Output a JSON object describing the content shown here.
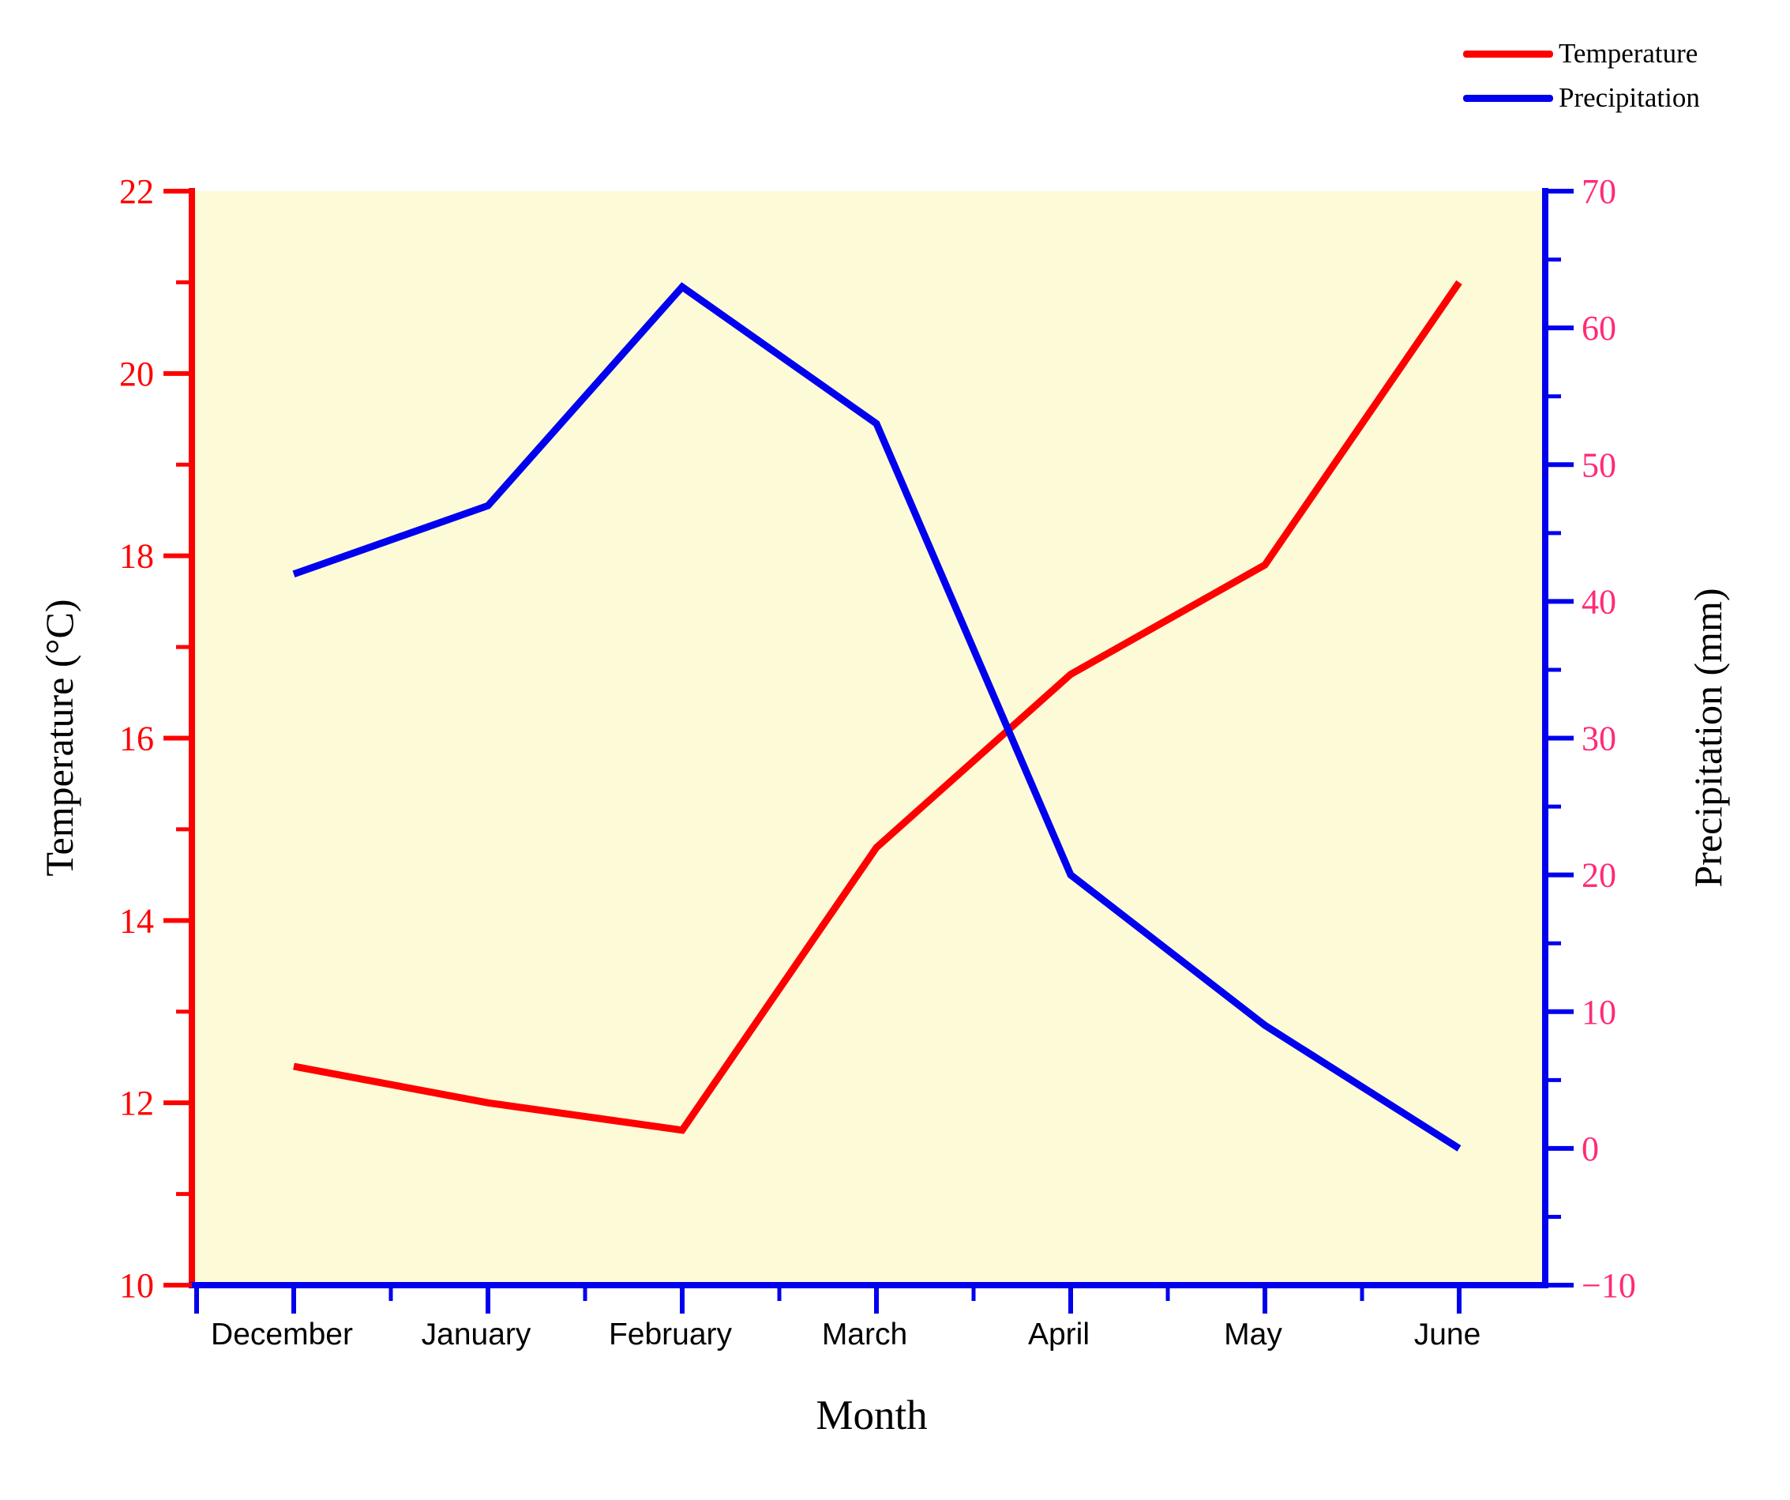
{
  "figure": {
    "background": "#ffffff",
    "plot_background": "#FDFAD8"
  },
  "colors": {
    "temperature_line": "#FF0000",
    "precipitation_line": "#0000EE",
    "left_axis": "#FF0000",
    "left_tick_labels": "#FF0000",
    "right_axis": "#0000EE",
    "right_tick_labels": "#FF2A78",
    "bottom_axis": "#0000EE",
    "month_labels": "#000000"
  },
  "legend": {
    "position": "top-right",
    "items": [
      {
        "label": "Temperature",
        "color": "#FF0000"
      },
      {
        "label": "Precipitation",
        "color": "#0000EE"
      }
    ]
  },
  "axes": {
    "x": {
      "title": "Month",
      "tick_labels": [
        "December",
        "January",
        "February",
        "March",
        "April",
        "May",
        "June"
      ]
    },
    "y_left": {
      "title": "Temperature (°C)",
      "min": 10,
      "max": 22,
      "major_tick_values": [
        22,
        20,
        18,
        16,
        14,
        12,
        10
      ],
      "tick_labels": [
        "22",
        "20",
        "18",
        "16",
        "14",
        "12",
        "10"
      ]
    },
    "y_right": {
      "title": "Precipitation (mm)",
      "min": -10,
      "max": 70,
      "major_tick_values": [
        70,
        60,
        50,
        40,
        30,
        20,
        10,
        0,
        -10
      ],
      "tick_labels": [
        "70",
        "60",
        "50",
        "40",
        "30",
        "20",
        "10",
        "0",
        "−10"
      ]
    }
  },
  "chart_data": {
    "type": "line",
    "categories": [
      "December",
      "January",
      "February",
      "March",
      "April",
      "May",
      "June"
    ],
    "xlabel": "Month",
    "ylabel_left": "Temperature (°C)",
    "ylabel_right": "Precipitation (mm)",
    "ylim_left": [
      10,
      22
    ],
    "ylim_right": [
      -10,
      70
    ],
    "grid": false,
    "legend_position": "top-right",
    "series": [
      {
        "name": "Temperature",
        "axis": "left",
        "color": "#FF0000",
        "values": [
          12.4,
          12.0,
          11.7,
          14.8,
          16.7,
          17.9,
          21.0
        ]
      },
      {
        "name": "Precipitation",
        "axis": "right",
        "color": "#0000EE",
        "values": [
          42,
          47,
          63,
          53,
          20,
          9,
          0
        ]
      }
    ]
  }
}
